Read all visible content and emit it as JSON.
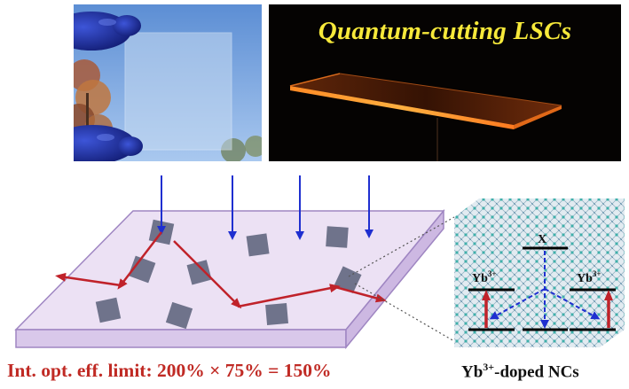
{
  "photos": {
    "left_alt": "transparent quantum-cutting LSC held by gloved fingers against sky",
    "right_title": "Quantum-cutting LSCs"
  },
  "energy_diagram": {
    "top_label": "X",
    "left_ion_base": "Yb",
    "left_ion_charge": "3+",
    "right_ion_base": "Yb",
    "right_ion_charge": "3+"
  },
  "captions": {
    "efficiency": "Int. opt. eff. limit: 200% × 75% = 150%",
    "nc_base": "Yb",
    "nc_charge": "3+",
    "nc_suffix": "-doped NCs"
  },
  "colors": {
    "incoming_arrow": "#1f2fd0",
    "emission_arrow": "#c0222a",
    "slab_fill": "#ece1f4",
    "slab_edge": "#9f86c2",
    "nc_cube": "#5a6079",
    "title_yellow": "#f7e93a"
  }
}
